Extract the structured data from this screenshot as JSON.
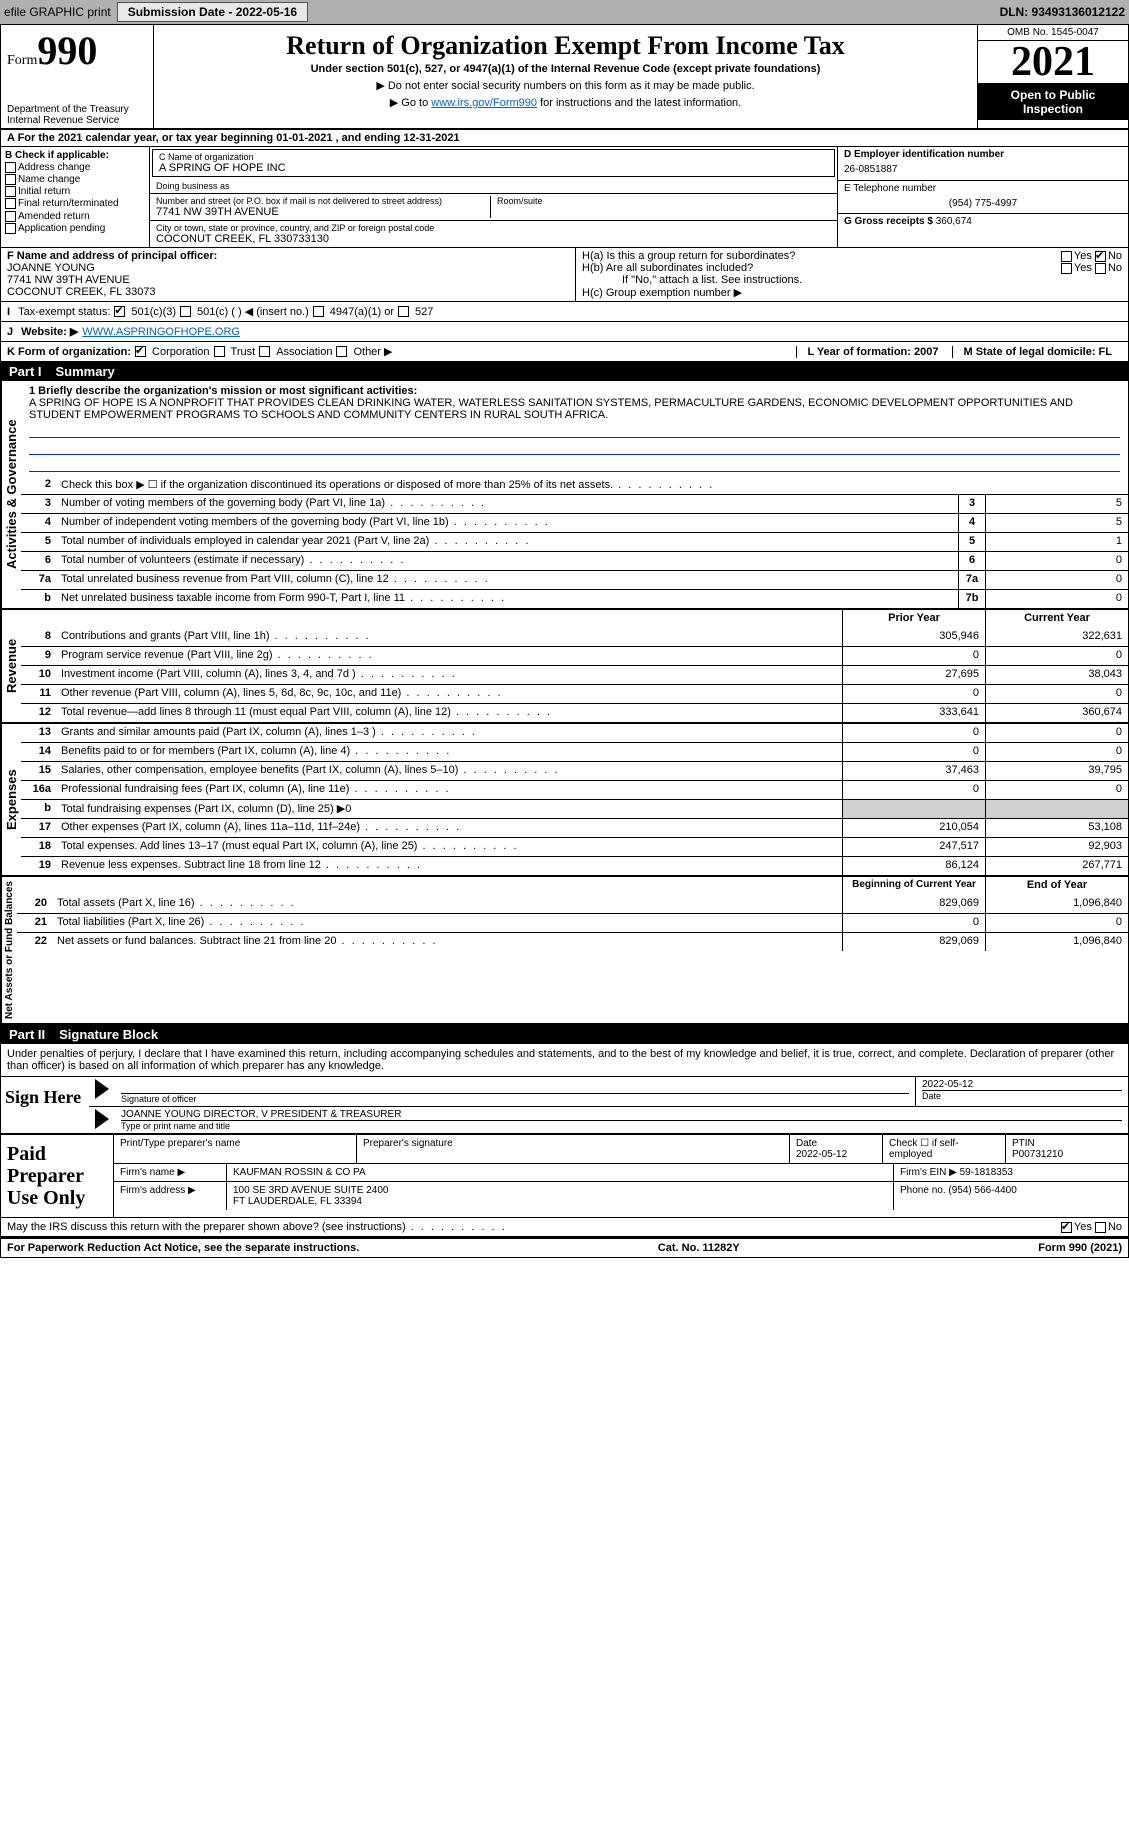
{
  "topbar": {
    "efile": "efile GRAPHIC print",
    "submission_label": "Submission Date - 2022-05-16",
    "dln": "DLN: 93493136012122"
  },
  "header": {
    "form_word": "Form",
    "form_num": "990",
    "dept": "Department of the Treasury",
    "irs": "Internal Revenue Service",
    "title": "Return of Organization Exempt From Income Tax",
    "subtitle": "Under section 501(c), 527, or 4947(a)(1) of the Internal Revenue Code (except private foundations)",
    "note1": "▶ Do not enter social security numbers on this form as it may be made public.",
    "note2_pre": "▶ Go to ",
    "note2_link": "www.irs.gov/Form990",
    "note2_post": " for instructions and the latest information.",
    "omb": "OMB No. 1545-0047",
    "year": "2021",
    "open": "Open to Public Inspection"
  },
  "row_a": "A For the 2021 calendar year, or tax year beginning 01-01-2021   , and ending 12-31-2021",
  "col_b": {
    "title": "B Check if applicable:",
    "items": [
      "Address change",
      "Name change",
      "Initial return",
      "Final return/terminated",
      "Amended return",
      "Application pending"
    ]
  },
  "col_c": {
    "name_lbl": "C Name of organization",
    "name": "A SPRING OF HOPE INC",
    "dba_lbl": "Doing business as",
    "dba": "",
    "street_lbl": "Number and street (or P.O. box if mail is not delivered to street address)",
    "room_lbl": "Room/suite",
    "street": "7741 NW 39TH AVENUE",
    "city_lbl": "City or town, state or province, country, and ZIP or foreign postal code",
    "city": "COCONUT CREEK, FL  330733130"
  },
  "col_d": {
    "ein_lbl": "D Employer identification number",
    "ein": "26-0851887",
    "phone_lbl": "E Telephone number",
    "phone": "(954) 775-4997",
    "gross_lbl": "G Gross receipts $",
    "gross": "360,674"
  },
  "col_f": {
    "lbl": "F Name and address of principal officer:",
    "name": "JOANNE YOUNG",
    "addr1": "7741 NW 39TH AVENUE",
    "addr2": "COCONUT CREEK, FL  33073"
  },
  "col_h": {
    "ha": "H(a)  Is this a group return for subordinates?",
    "hb": "H(b)  Are all subordinates included?",
    "hb_note": "If \"No,\" attach a list. See instructions.",
    "hc": "H(c)  Group exemption number ▶",
    "yes": "Yes",
    "no": "No"
  },
  "row_i": {
    "lbl": "Tax-exempt status:",
    "opts": [
      "501(c)(3)",
      "501(c) (  ) ◀ (insert no.)",
      "4947(a)(1) or",
      "527"
    ]
  },
  "row_j": {
    "lbl": "J",
    "web_lbl": "Website: ▶",
    "web": "WWW.ASPRINGOFHOPE.ORG"
  },
  "row_k": {
    "lbl": "K Form of organization:",
    "opts": [
      "Corporation",
      "Trust",
      "Association",
      "Other ▶"
    ]
  },
  "row_l": {
    "l": "L Year of formation: 2007",
    "m": "M State of legal domicile: FL"
  },
  "part1": {
    "bar": "Part I",
    "title": "Summary"
  },
  "mission": {
    "q": "1  Briefly describe the organization's mission or most significant activities:",
    "text": "A SPRING OF HOPE IS A NONPROFIT THAT PROVIDES CLEAN DRINKING WATER, WATERLESS SANITATION SYSTEMS, PERMACULTURE GARDENS, ECONOMIC DEVELOPMENT OPPORTUNITIES AND STUDENT EMPOWERMENT PROGRAMS TO SCHOOLS AND COMMUNITY CENTERS IN RURAL SOUTH AFRICA."
  },
  "gov_lines": [
    {
      "n": "2",
      "t": "Check this box ▶ ☐  if the organization discontinued its operations or disposed of more than 25% of its net assets."
    },
    {
      "n": "3",
      "t": "Number of voting members of the governing body (Part VI, line 1a)",
      "box": "3",
      "v": "5"
    },
    {
      "n": "4",
      "t": "Number of independent voting members of the governing body (Part VI, line 1b)",
      "box": "4",
      "v": "5"
    },
    {
      "n": "5",
      "t": "Total number of individuals employed in calendar year 2021 (Part V, line 2a)",
      "box": "5",
      "v": "1"
    },
    {
      "n": "6",
      "t": "Total number of volunteers (estimate if necessary)",
      "box": "6",
      "v": "0"
    },
    {
      "n": "7a",
      "t": "Total unrelated business revenue from Part VIII, column (C), line 12",
      "box": "7a",
      "v": "0"
    },
    {
      "n": "b",
      "t": "Net unrelated business taxable income from Form 990-T, Part I, line 11",
      "box": "7b",
      "v": "0"
    }
  ],
  "rev_hdr": {
    "prior": "Prior Year",
    "curr": "Current Year"
  },
  "rev_lines": [
    {
      "n": "8",
      "t": "Contributions and grants (Part VIII, line 1h)",
      "p": "305,946",
      "c": "322,631"
    },
    {
      "n": "9",
      "t": "Program service revenue (Part VIII, line 2g)",
      "p": "0",
      "c": "0"
    },
    {
      "n": "10",
      "t": "Investment income (Part VIII, column (A), lines 3, 4, and 7d )",
      "p": "27,695",
      "c": "38,043"
    },
    {
      "n": "11",
      "t": "Other revenue (Part VIII, column (A), lines 5, 6d, 8c, 9c, 10c, and 11e)",
      "p": "0",
      "c": "0"
    },
    {
      "n": "12",
      "t": "Total revenue—add lines 8 through 11 (must equal Part VIII, column (A), line 12)",
      "p": "333,641",
      "c": "360,674"
    }
  ],
  "exp_lines": [
    {
      "n": "13",
      "t": "Grants and similar amounts paid (Part IX, column (A), lines 1–3 )",
      "p": "0",
      "c": "0"
    },
    {
      "n": "14",
      "t": "Benefits paid to or for members (Part IX, column (A), line 4)",
      "p": "0",
      "c": "0"
    },
    {
      "n": "15",
      "t": "Salaries, other compensation, employee benefits (Part IX, column (A), lines 5–10)",
      "p": "37,463",
      "c": "39,795"
    },
    {
      "n": "16a",
      "t": "Professional fundraising fees (Part IX, column (A), line 11e)",
      "p": "0",
      "c": "0"
    },
    {
      "n": "b",
      "t": "Total fundraising expenses (Part IX, column (D), line 25) ▶0",
      "shade": true
    },
    {
      "n": "17",
      "t": "Other expenses (Part IX, column (A), lines 11a–11d, 11f–24e)",
      "p": "210,054",
      "c": "53,108"
    },
    {
      "n": "18",
      "t": "Total expenses. Add lines 13–17 (must equal Part IX, column (A), line 25)",
      "p": "247,517",
      "c": "92,903"
    },
    {
      "n": "19",
      "t": "Revenue less expenses. Subtract line 18 from line 12",
      "p": "86,124",
      "c": "267,771"
    }
  ],
  "net_hdr": {
    "prior": "Beginning of Current Year",
    "curr": "End of Year"
  },
  "net_lines": [
    {
      "n": "20",
      "t": "Total assets (Part X, line 16)",
      "p": "829,069",
      "c": "1,096,840"
    },
    {
      "n": "21",
      "t": "Total liabilities (Part X, line 26)",
      "p": "0",
      "c": "0"
    },
    {
      "n": "22",
      "t": "Net assets or fund balances. Subtract line 21 from line 20",
      "p": "829,069",
      "c": "1,096,840"
    }
  ],
  "side": {
    "gov": "Activities & Governance",
    "rev": "Revenue",
    "exp": "Expenses",
    "net": "Net Assets or Fund Balances"
  },
  "part2": {
    "bar": "Part II",
    "title": "Signature Block"
  },
  "sig_decl": "Under penalties of perjury, I declare that I have examined this return, including accompanying schedules and statements, and to the best of my knowledge and belief, it is true, correct, and complete. Declaration of preparer (other than officer) is based on all information of which preparer has any knowledge.",
  "sign": {
    "here": "Sign Here",
    "sig_lbl": "Signature of officer",
    "date": "2022-05-12",
    "date_lbl": "Date",
    "name": "JOANNE YOUNG  DIRECTOR, V PRESIDENT & TREASURER",
    "name_lbl": "Type or print name and title"
  },
  "paid": {
    "lbl": "Paid Preparer Use Only",
    "h1": "Print/Type preparer's name",
    "h2": "Preparer's signature",
    "h3": "Date",
    "h4": "Check ☐ if self-employed",
    "h5": "PTIN",
    "date": "2022-05-12",
    "ptin": "P00731210",
    "firm_lbl": "Firm's name   ▶",
    "firm": "KAUFMAN ROSSIN & CO PA",
    "ein_lbl": "Firm's EIN ▶",
    "ein": "59-1818353",
    "addr_lbl": "Firm's address ▶",
    "addr1": "100 SE 3RD AVENUE SUITE 2400",
    "addr2": "FT LAUDERDALE, FL  33394",
    "phone_lbl": "Phone no.",
    "phone": "(954) 566-4400"
  },
  "may": "May the IRS discuss this return with the preparer shown above? (see instructions)",
  "foot": {
    "l": "For Paperwork Reduction Act Notice, see the separate instructions.",
    "c": "Cat. No. 11282Y",
    "r": "Form 990 (2021)"
  }
}
